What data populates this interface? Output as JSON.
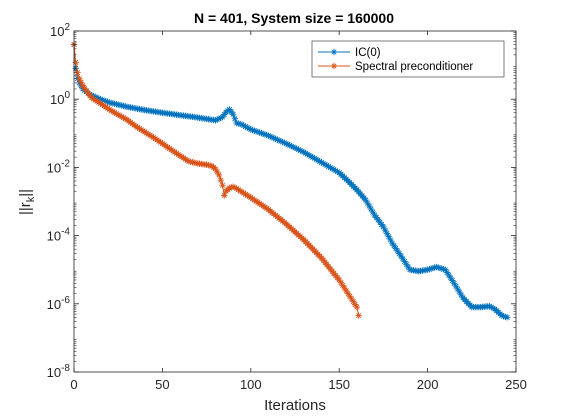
{
  "chart_data": {
    "type": "line",
    "title": "N = 401, System size = 160000",
    "xlabel": "Iterations",
    "ylabel": "||r_k||",
    "ylabel_parts": {
      "base": "||r",
      "sub": "k",
      "tail": "||"
    },
    "xlim": [
      0,
      250
    ],
    "ylim": [
      1e-08,
      100
    ],
    "yscale": "log",
    "x_ticks": [
      "0",
      "50",
      "100",
      "150",
      "200",
      "250"
    ],
    "x_tick_values": [
      0,
      50,
      100,
      150,
      200,
      250
    ],
    "y_ticks": [
      {
        "base": "10",
        "exp": "2",
        "value": 100
      },
      {
        "base": "10",
        "exp": "0",
        "value": 1
      },
      {
        "base": "10",
        "exp": "-2",
        "value": 0.01
      },
      {
        "base": "10",
        "exp": "-4",
        "value": 0.0001
      },
      {
        "base": "10",
        "exp": "-6",
        "value": 1e-06
      },
      {
        "base": "10",
        "exp": "-8",
        "value": 1e-08
      }
    ],
    "grid": false,
    "legend_position": "top-right",
    "marker": "asterisk",
    "series": [
      {
        "name": "IC(0)",
        "color": "#0072BD",
        "points": [
          [
            0,
            40
          ],
          [
            1,
            8
          ],
          [
            2,
            4
          ],
          [
            3,
            3
          ],
          [
            5,
            2
          ],
          [
            8,
            1.5
          ],
          [
            10,
            1.3
          ],
          [
            15,
            1.0
          ],
          [
            20,
            0.8
          ],
          [
            30,
            0.6
          ],
          [
            40,
            0.48
          ],
          [
            50,
            0.4
          ],
          [
            60,
            0.34
          ],
          [
            70,
            0.29
          ],
          [
            80,
            0.24
          ],
          [
            84,
            0.3
          ],
          [
            86,
            0.42
          ],
          [
            88,
            0.5
          ],
          [
            90,
            0.36
          ],
          [
            92,
            0.2
          ],
          [
            95,
            0.18
          ],
          [
            100,
            0.13
          ],
          [
            110,
            0.085
          ],
          [
            120,
            0.05
          ],
          [
            130,
            0.028
          ],
          [
            140,
            0.014
          ],
          [
            150,
            0.007
          ],
          [
            155,
            0.004
          ],
          [
            160,
            0.0022
          ],
          [
            165,
            0.0011
          ],
          [
            170,
            0.0004
          ],
          [
            175,
            0.00018
          ],
          [
            180,
            6e-05
          ],
          [
            185,
            2.5e-05
          ],
          [
            190,
            1e-05
          ],
          [
            195,
            9e-06
          ],
          [
            200,
            1e-05
          ],
          [
            205,
            1.2e-05
          ],
          [
            210,
            1e-05
          ],
          [
            215,
            4e-06
          ],
          [
            220,
            1.5e-06
          ],
          [
            225,
            8e-07
          ],
          [
            230,
            8e-07
          ],
          [
            235,
            8.5e-07
          ],
          [
            238,
            7e-07
          ],
          [
            242,
            4.5e-07
          ],
          [
            245,
            4e-07
          ]
        ]
      },
      {
        "name": "Spectral preconditioner",
        "color": "#D95319",
        "points": [
          [
            0,
            40
          ],
          [
            1,
            12
          ],
          [
            2,
            6
          ],
          [
            3,
            4
          ],
          [
            5,
            2.5
          ],
          [
            8,
            1.5
          ],
          [
            10,
            1.1
          ],
          [
            15,
            0.75
          ],
          [
            20,
            0.5
          ],
          [
            25,
            0.35
          ],
          [
            30,
            0.25
          ],
          [
            35,
            0.16
          ],
          [
            40,
            0.11
          ],
          [
            45,
            0.075
          ],
          [
            50,
            0.05
          ],
          [
            55,
            0.033
          ],
          [
            60,
            0.022
          ],
          [
            65,
            0.015
          ],
          [
            70,
            0.013
          ],
          [
            75,
            0.012
          ],
          [
            78,
            0.011
          ],
          [
            80,
            0.009
          ],
          [
            82,
            0.006
          ],
          [
            84,
            0.003
          ],
          [
            85,
            0.0015
          ],
          [
            86,
            0.002
          ],
          [
            88,
            0.0025
          ],
          [
            90,
            0.0027
          ],
          [
            92,
            0.0024
          ],
          [
            95,
            0.0019
          ],
          [
            100,
            0.0013
          ],
          [
            110,
            0.00058
          ],
          [
            120,
            0.00022
          ],
          [
            130,
            7.5e-05
          ],
          [
            140,
            2.2e-05
          ],
          [
            150,
            5e-06
          ],
          [
            155,
            2e-06
          ],
          [
            160,
            8e-07
          ],
          [
            161,
            4.5e-07
          ]
        ]
      }
    ]
  }
}
